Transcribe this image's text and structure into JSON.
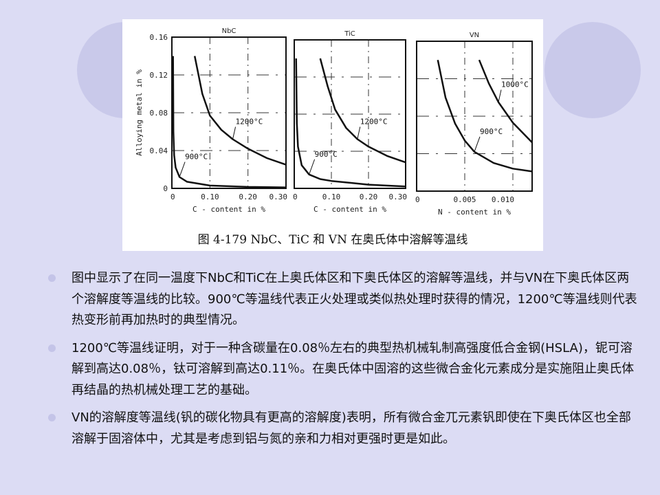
{
  "colors": {
    "background": "#dcdcf4",
    "decor_circle": "#c9c9ea",
    "bullet": "#c4c4e8"
  },
  "figure": {
    "caption": "图 4-179  NbC、TiC 和 VN 在奥氏体中溶解等温线"
  },
  "chart_data": [
    {
      "type": "line",
      "title": "NbC",
      "xlabel": "C - content in %",
      "ylabel": "Alloying metal in %",
      "xlim": [
        0,
        0.3
      ],
      "ylim": [
        0,
        0.16
      ],
      "xticks": [
        "0",
        "0.10",
        "0.20",
        "0.30"
      ],
      "yticks": [
        "0",
        "0.04",
        "0.08",
        "0.12",
        "0.16"
      ],
      "grid": true,
      "series": [
        {
          "name": "1200°C",
          "x": [
            0.06,
            0.08,
            0.1,
            0.13,
            0.16,
            0.2,
            0.25,
            0.3
          ],
          "y": [
            0.14,
            0.1,
            0.077,
            0.062,
            0.052,
            0.042,
            0.032,
            0.025
          ]
        },
        {
          "name": "900°C",
          "x": [
            0.003,
            0.004,
            0.006,
            0.01,
            0.02,
            0.04,
            0.1,
            0.2,
            0.3
          ],
          "y": [
            0.14,
            0.06,
            0.035,
            0.022,
            0.012,
            0.007,
            0.003,
            0.0015,
            0.001
          ]
        }
      ]
    },
    {
      "type": "line",
      "title": "TiC",
      "xlabel": "C - content in %",
      "ylabel": "",
      "xlim": [
        0,
        0.3
      ],
      "ylim": [
        0,
        0.16
      ],
      "xticks": [
        "0",
        "0.10",
        "0.20",
        "0.30"
      ],
      "yticks": [],
      "grid": true,
      "series": [
        {
          "name": "1200°C",
          "x": [
            0.07,
            0.09,
            0.11,
            0.14,
            0.17,
            0.2,
            0.25,
            0.3
          ],
          "y": [
            0.14,
            0.11,
            0.085,
            0.065,
            0.053,
            0.045,
            0.035,
            0.028
          ]
        },
        {
          "name": "900°C",
          "x": [
            0.005,
            0.007,
            0.01,
            0.02,
            0.04,
            0.07,
            0.1,
            0.2,
            0.3
          ],
          "y": [
            0.14,
            0.07,
            0.045,
            0.025,
            0.015,
            0.01,
            0.008,
            0.004,
            0.002
          ]
        }
      ]
    },
    {
      "type": "line",
      "title": "VN",
      "xlabel": "N - content in %",
      "ylabel": "",
      "xlim": [
        0,
        0.012
      ],
      "ylim": [
        0,
        0.16
      ],
      "xticks": [
        "0",
        "0.005",
        "0.010"
      ],
      "yticks": [],
      "grid": true,
      "series": [
        {
          "name": "1000°C",
          "x": [
            0.0065,
            0.0075,
            0.0085,
            0.01,
            0.012
          ],
          "y": [
            0.14,
            0.115,
            0.095,
            0.073,
            0.052
          ]
        },
        {
          "name": "900°C",
          "x": [
            0.0022,
            0.003,
            0.004,
            0.005,
            0.006,
            0.008,
            0.01,
            0.012
          ],
          "y": [
            0.14,
            0.1,
            0.072,
            0.054,
            0.042,
            0.03,
            0.024,
            0.021
          ]
        }
      ]
    }
  ],
  "bullets": [
    {
      "text": "图中显示了在同一温度下NbC和TiC在上奥氏体区和下奥氏体区的溶解等温线，并与VN在下奥氏体区两个溶解度等温线的比较。900℃等温线代表正火处理或类似热处理时获得的情况，1200℃等温线则代表热变形前再加热时的典型情况。"
    },
    {
      "text": "1200℃等温线证明，对于一种含碳量在0.08％左右的典型热机械轧制高强度低合金钢(HSLA)，铌可溶解到高达0.08％，钛可溶解到高达0.11％。在奥氏体中固溶的这些微合金化元素成分是实施阻止奥氏体再结晶的热机械处理工艺的基础。"
    },
    {
      "text": "VN的溶解度等温线(钒的碳化物具有更高的溶解度)表明，所有微合金兀元素钒即使在下奥氏体区也全部溶解于固溶体中，尤其是考虑到铝与氮的亲和力相对更强时更是如此。"
    }
  ]
}
